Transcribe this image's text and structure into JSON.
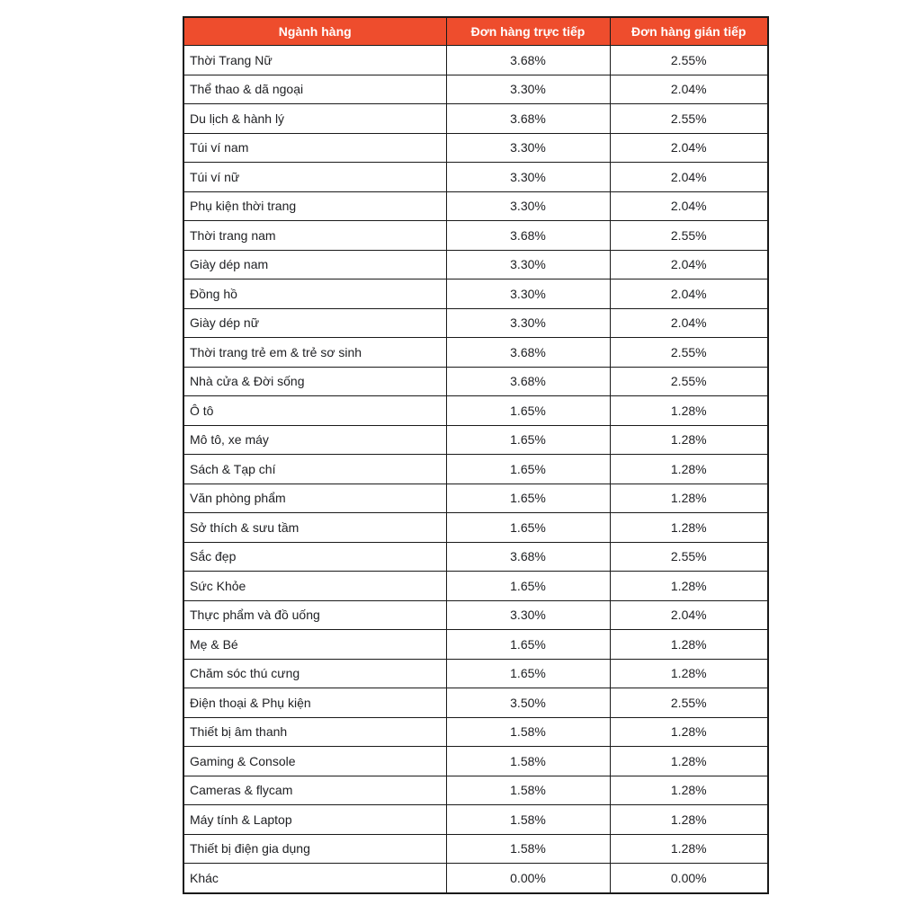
{
  "colors": {
    "header_bg": "#ee4d2d",
    "header_text": "#ffffff",
    "border": "#1a1a1a",
    "cell_text": "#202124",
    "page_bg": "#ffffff"
  },
  "chart_data": {
    "type": "table",
    "title": "",
    "columns": [
      "Ngành hàng",
      "Đơn hàng trực tiếp",
      "Đơn hàng gián tiếp"
    ],
    "rows": [
      [
        "Thời Trang Nữ",
        "3.68%",
        "2.55%"
      ],
      [
        "Thể thao & dã ngoại",
        "3.30%",
        "2.04%"
      ],
      [
        "Du lịch & hành lý",
        "3.68%",
        "2.55%"
      ],
      [
        "Túi ví nam",
        "3.30%",
        "2.04%"
      ],
      [
        "Túi ví nữ",
        "3.30%",
        "2.04%"
      ],
      [
        "Phụ kiện thời trang",
        "3.30%",
        "2.04%"
      ],
      [
        "Thời trang nam",
        "3.68%",
        "2.55%"
      ],
      [
        "Giày dép nam",
        "3.30%",
        "2.04%"
      ],
      [
        "Đồng hồ",
        "3.30%",
        "2.04%"
      ],
      [
        "Giày dép nữ",
        "3.30%",
        "2.04%"
      ],
      [
        "Thời trang trẻ em & trẻ sơ sinh",
        "3.68%",
        "2.55%"
      ],
      [
        "Nhà cửa & Đời sống",
        "3.68%",
        "2.55%"
      ],
      [
        "Ô tô",
        "1.65%",
        "1.28%"
      ],
      [
        "Mô tô, xe máy",
        "1.65%",
        "1.28%"
      ],
      [
        "Sách & Tạp chí",
        "1.65%",
        "1.28%"
      ],
      [
        "Văn phòng phẩm",
        "1.65%",
        "1.28%"
      ],
      [
        "Sở thích & sưu tầm",
        "1.65%",
        "1.28%"
      ],
      [
        "Sắc đẹp",
        "3.68%",
        "2.55%"
      ],
      [
        "Sức Khỏe",
        "1.65%",
        "1.28%"
      ],
      [
        "Thực phẩm và đồ uống",
        "3.30%",
        "2.04%"
      ],
      [
        "Mẹ & Bé",
        "1.65%",
        "1.28%"
      ],
      [
        "Chăm sóc thú cưng",
        "1.65%",
        "1.28%"
      ],
      [
        "Điện thoại & Phụ kiện",
        "3.50%",
        "2.55%"
      ],
      [
        "Thiết bị âm thanh",
        "1.58%",
        "1.28%"
      ],
      [
        "Gaming & Console",
        "1.58%",
        "1.28%"
      ],
      [
        "Cameras & flycam",
        "1.58%",
        "1.28%"
      ],
      [
        "Máy tính & Laptop",
        "1.58%",
        "1.28%"
      ],
      [
        "Thiết bị điện gia dụng",
        "1.58%",
        "1.28%"
      ],
      [
        "Khác",
        "0.00%",
        "0.00%"
      ]
    ]
  }
}
